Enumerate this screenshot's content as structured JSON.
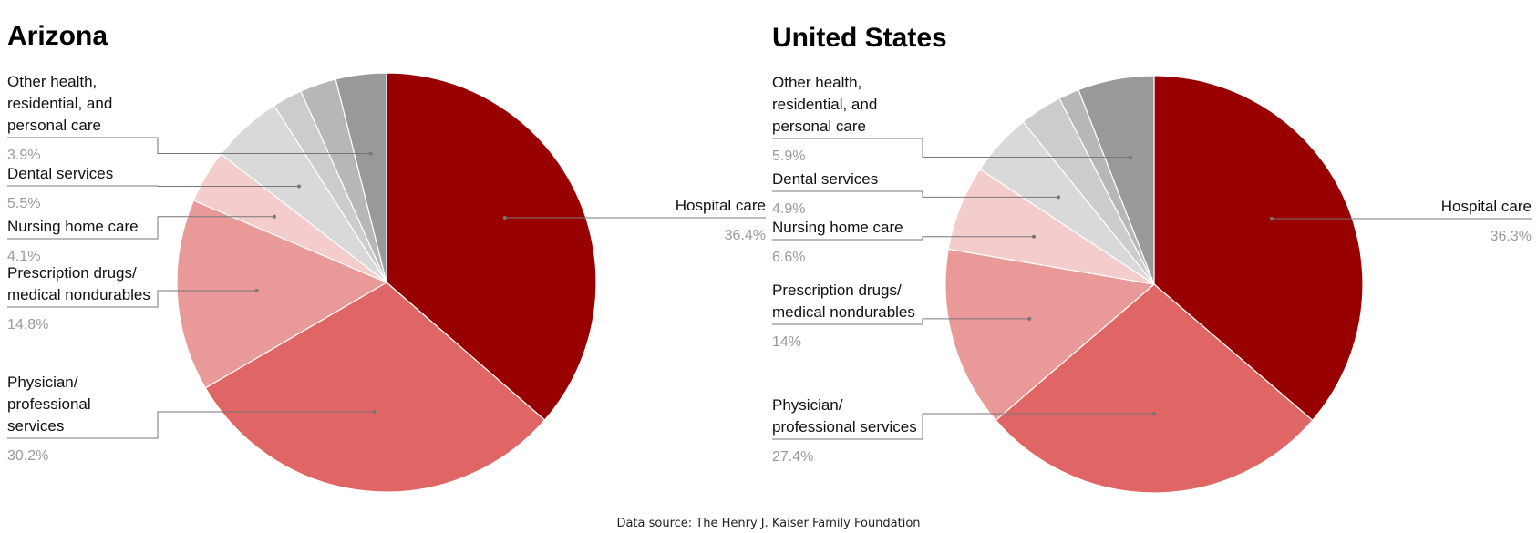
{
  "source_note": "Data source: The Henry J. Kaiser Family Foundation",
  "chart_data": [
    {
      "type": "pie",
      "title": "Arizona",
      "slices": [
        {
          "label": "Hospital care",
          "label_lines": [
            "Hospital care"
          ],
          "value": 36.4,
          "display": "36.4%",
          "color": "#990000"
        },
        {
          "label": "Physician/ professional services",
          "label_lines": [
            "Physician/",
            "professional",
            "services"
          ],
          "value": 30.2,
          "display": "30.2%",
          "color": "#e06666"
        },
        {
          "label": "Prescription drugs/ medical nondurables",
          "label_lines": [
            "Prescription drugs/",
            "medical nondurables"
          ],
          "value": 14.8,
          "display": "14.8%",
          "color": "#ea9999"
        },
        {
          "label": "Nursing home care",
          "label_lines": [
            "Nursing home care"
          ],
          "value": 4.1,
          "display": "4.1%",
          "color": "#f4cccc"
        },
        {
          "label": "Dental services",
          "label_lines": [
            "Dental services"
          ],
          "value": 5.5,
          "display": "5.5%",
          "color": "#d9d9d9"
        },
        {
          "label": "",
          "label_lines": [],
          "value": 2.3,
          "display": "",
          "color": "#cccccc"
        },
        {
          "label": "",
          "label_lines": [],
          "value": 2.8,
          "display": "",
          "color": "#b7b7b7"
        },
        {
          "label": "Other health, residential, and personal care",
          "label_lines": [
            "Other health,",
            "residential, and",
            "personal care"
          ],
          "value": 3.9,
          "display": "3.9%",
          "color": "#999999"
        }
      ]
    },
    {
      "type": "pie",
      "title": "United States",
      "slices": [
        {
          "label": "Hospital care",
          "label_lines": [
            "Hospital care"
          ],
          "value": 36.3,
          "display": "36.3%",
          "color": "#990000"
        },
        {
          "label": "Physician/ professional services",
          "label_lines": [
            "Physician/",
            "professional services"
          ],
          "value": 27.4,
          "display": "27.4%",
          "color": "#e06666"
        },
        {
          "label": "Prescription drugs/ medical nondurables",
          "label_lines": [
            "Prescription drugs/",
            "medical nondurables"
          ],
          "value": 14,
          "display": "14%",
          "color": "#ea9999"
        },
        {
          "label": "Nursing home care",
          "label_lines": [
            "Nursing home care"
          ],
          "value": 6.6,
          "display": "6.6%",
          "color": "#f4cccc"
        },
        {
          "label": "Dental services",
          "label_lines": [
            "Dental services"
          ],
          "value": 4.9,
          "display": "4.9%",
          "color": "#d9d9d9"
        },
        {
          "label": "",
          "label_lines": [],
          "value": 3.3,
          "display": "",
          "color": "#cccccc"
        },
        {
          "label": "",
          "label_lines": [],
          "value": 1.6,
          "display": "",
          "color": "#b7b7b7"
        },
        {
          "label": "Other health, residential, and personal care",
          "label_lines": [
            "Other health,",
            "residential, and",
            "personal care"
          ],
          "value": 5.9,
          "display": "5.9%",
          "color": "#999999"
        }
      ]
    }
  ]
}
